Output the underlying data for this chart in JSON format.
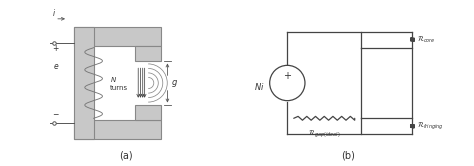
{
  "bg_color": "white",
  "line_color": "#555555",
  "dark_color": "#333333",
  "fig_width": 4.74,
  "fig_height": 1.66,
  "dpi": 100,
  "label_a": "(a)",
  "label_b": "(b)"
}
